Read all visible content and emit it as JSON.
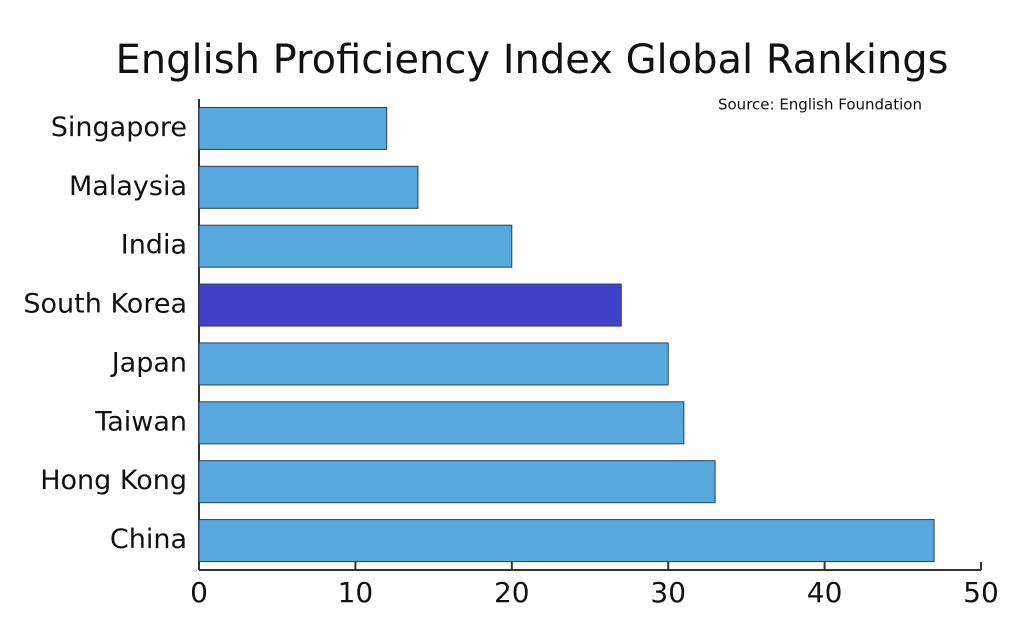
{
  "chart_data": {
    "type": "bar",
    "orientation": "horizontal",
    "title": "English Proficiency Index Global Rankings",
    "subtitle": "Source: English Foundation",
    "categories": [
      "Singapore",
      "Malaysia",
      "India",
      "South Korea",
      "Japan",
      "Taiwan",
      "Hong Kong",
      "China"
    ],
    "values": [
      12,
      14,
      20,
      27,
      30,
      31,
      33,
      47
    ],
    "colors": [
      "#56a8de",
      "#56a8de",
      "#56a8de",
      "#4040c8",
      "#56a8de",
      "#56a8de",
      "#56a8de",
      "#56a8de"
    ],
    "xlim": [
      0,
      50
    ],
    "xticks": [
      0,
      10,
      20,
      30,
      40,
      50
    ],
    "grid": false
  }
}
